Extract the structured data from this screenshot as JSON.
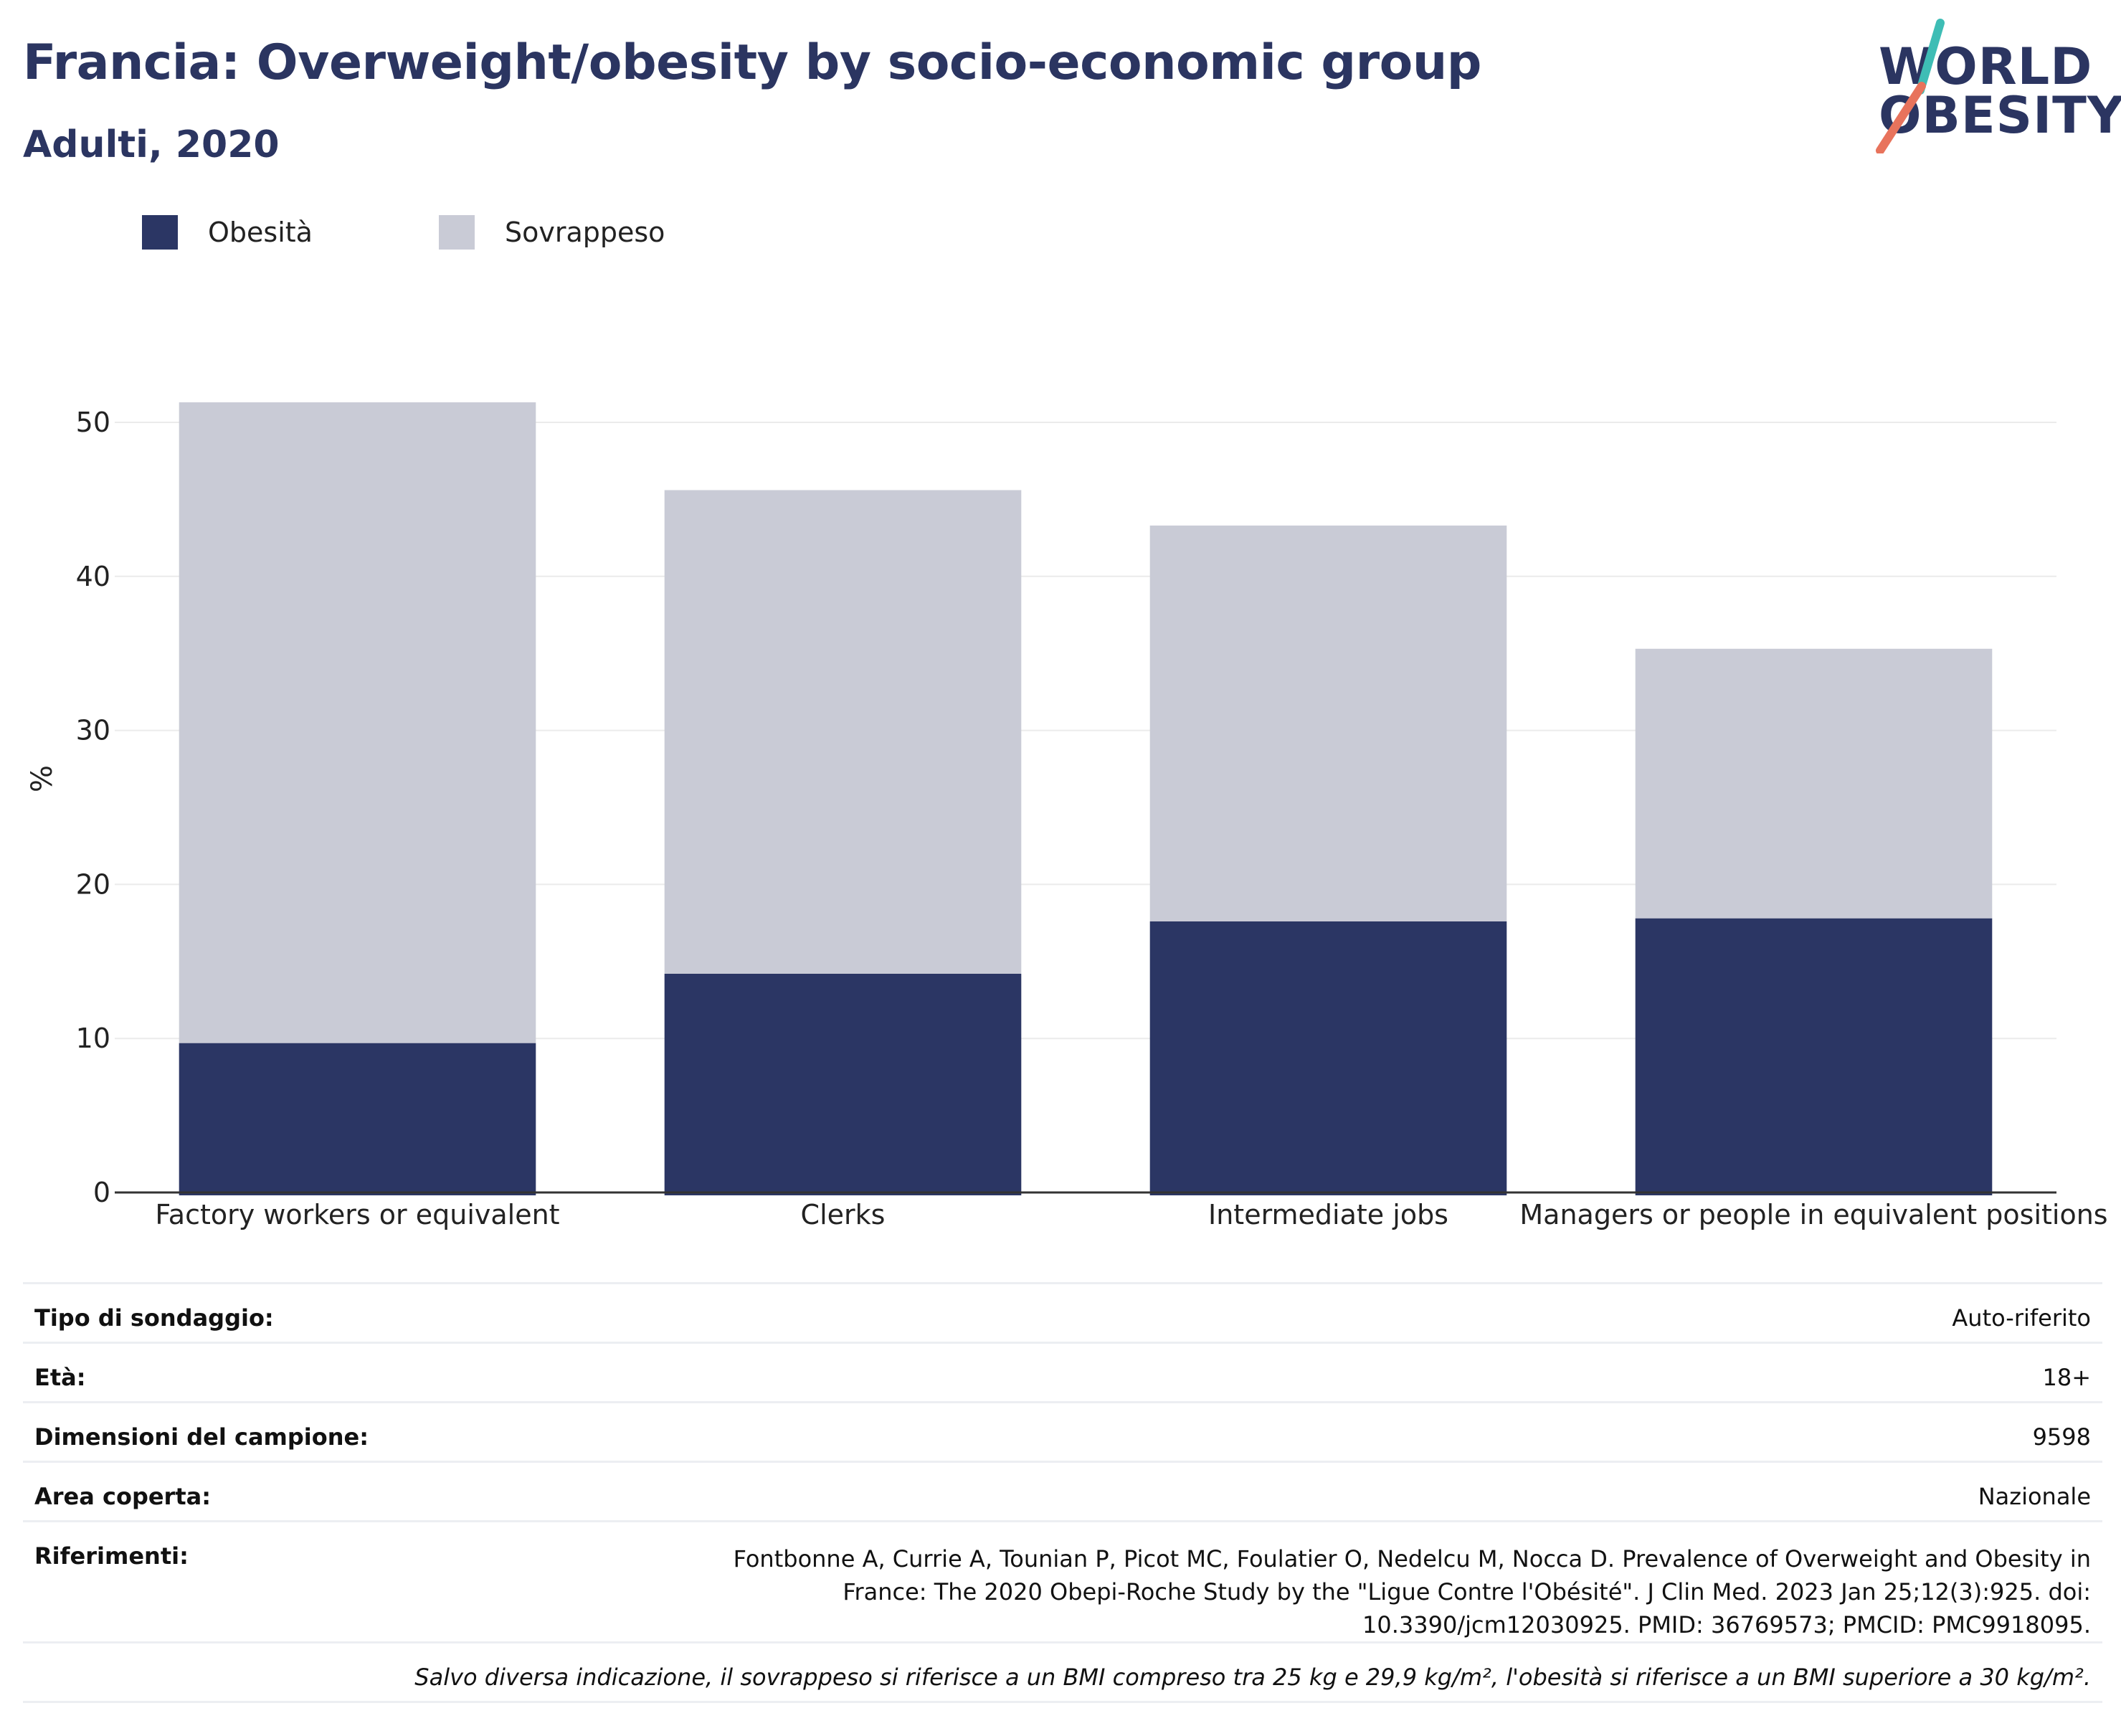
{
  "title": "Francia: Overweight/obesity by socio-economic group",
  "subtitle": "Adulti, 2020",
  "logo": {
    "line1": "WORLD",
    "line2": "OBESITY",
    "slash_color_top": "#3ebdb5",
    "slash_color_bottom": "#e8735c"
  },
  "colors": {
    "obesity": "#2b3664",
    "overweight": "#c9cbd6",
    "grid": "#ebebeb",
    "axis": "#333333",
    "text_dark": "#2b3561"
  },
  "legend": {
    "items": [
      {
        "label": "Obesità",
        "color": "#2b3664"
      },
      {
        "label": "Sovrappeso",
        "color": "#c9cbd6"
      }
    ]
  },
  "chart_data": {
    "type": "bar",
    "stacked": true,
    "title": "Francia: Overweight/obesity by socio-economic group",
    "subtitle": "Adulti, 2020",
    "xlabel": "",
    "ylabel": "%",
    "ylim": [
      0,
      52
    ],
    "yticks": [
      0,
      10,
      20,
      30,
      40,
      50
    ],
    "grid": true,
    "legend_position": "top-left",
    "categories": [
      "Factory workers or equivalent",
      "Clerks",
      "Intermediate jobs",
      "Managers or people in equivalent positions"
    ],
    "series": [
      {
        "name": "Obesità",
        "values": [
          9.7,
          14.2,
          17.6,
          17.8
        ]
      },
      {
        "name": "Sovrappeso",
        "values": [
          41.6,
          31.4,
          25.7,
          17.5
        ]
      }
    ]
  },
  "info": {
    "rows": [
      {
        "label": "Tipo di sondaggio:",
        "value": "Auto-riferito"
      },
      {
        "label": "Età:",
        "value": "18+"
      },
      {
        "label": "Dimensioni del campione:",
        "value": "9598"
      },
      {
        "label": "Area coperta:",
        "value": "Nazionale"
      },
      {
        "label": "Riferimenti:",
        "value": "Fontbonne A, Currie A, Tounian P, Picot MC, Foulatier O, Nedelcu M, Nocca D. Prevalence of Overweight and Obesity in France: The 2020 Obepi-Roche Study by the \"Ligue Contre l'Obésité\". J Clin Med. 2023 Jan 25;12(3):925. doi: 10.3390/jcm12030925. PMID: 36769573; PMCID: PMC9918095."
      }
    ],
    "note": "Salvo diversa indicazione, il sovrappeso si riferisce a un BMI compreso tra 25 kg e 29,9 kg/m², l'obesità si riferisce a un BMI superiore a 30 kg/m²."
  }
}
